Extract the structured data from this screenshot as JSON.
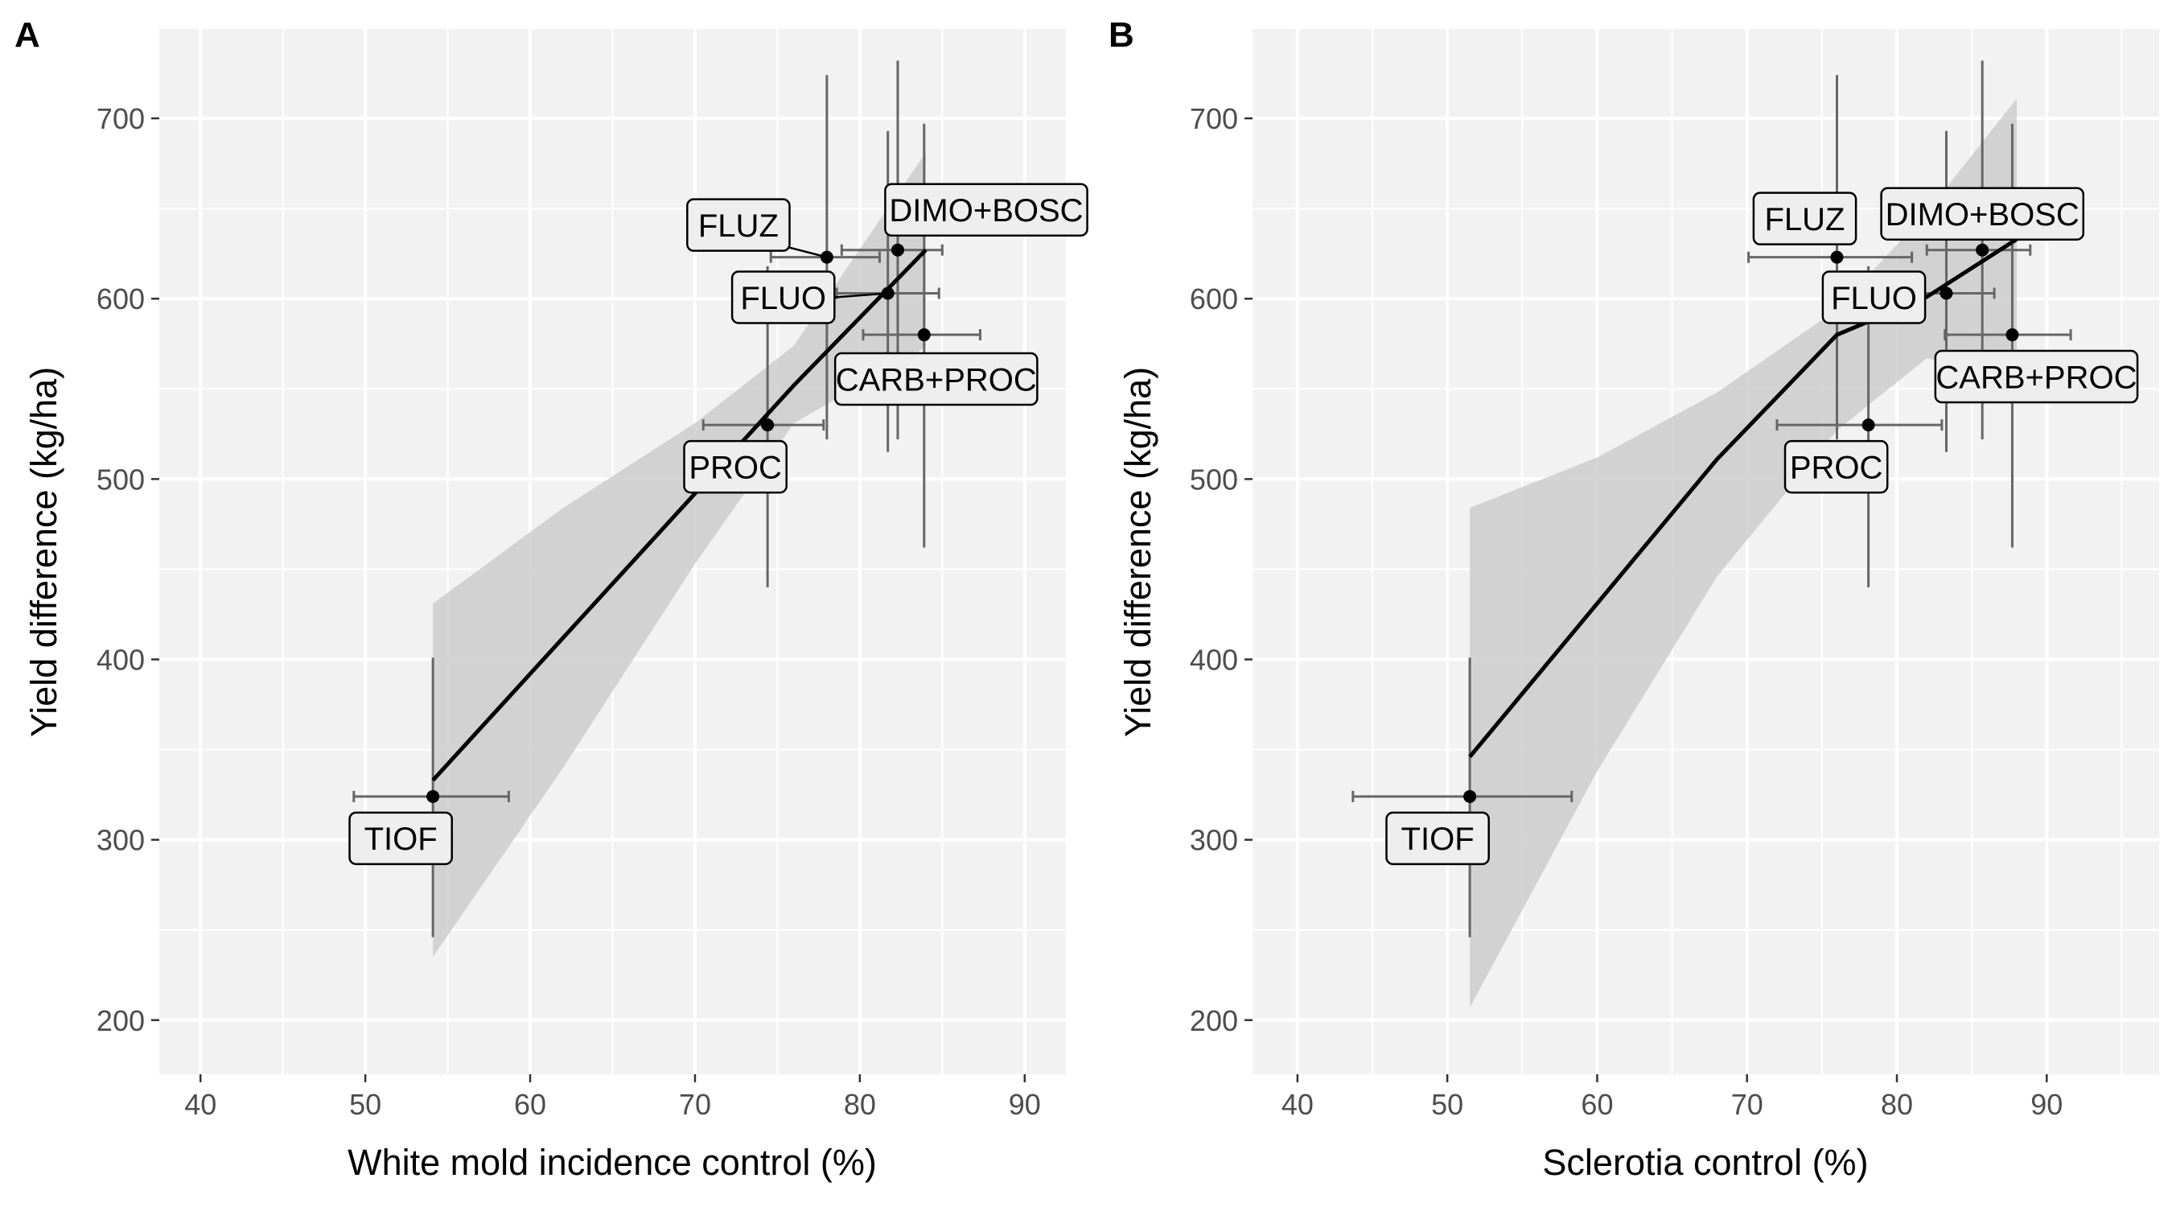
{
  "colors": {
    "panel_bg": "#f2f2f2",
    "grid": "#ffffff",
    "ribbon": "#cccccc",
    "fit_line": "#000000",
    "errorbar": "#666666",
    "point": "#000000",
    "label_bg": "#eeeeee",
    "label_border": "#000000",
    "tick_text": "#4d4d4d"
  },
  "chart_data": [
    {
      "type": "scatter",
      "panel": "A",
      "title": "",
      "xlabel": "White mold incidence control (%)",
      "ylabel": "Yield difference (kg/ha)",
      "xlim": [
        37.5,
        92.5
      ],
      "ylim": [
        170,
        750
      ],
      "xticks": [
        40,
        50,
        60,
        70,
        80,
        90
      ],
      "yticks": [
        200,
        300,
        400,
        500,
        600,
        700
      ],
      "grid": true,
      "legend": "none",
      "points": [
        {
          "label": "TIOF",
          "x": 54.1,
          "y": 324,
          "x_err": [
            49.3,
            58.7
          ],
          "y_err": [
            246,
            401
          ]
        },
        {
          "label": "PROC",
          "x": 74.4,
          "y": 530,
          "x_err": [
            70.5,
            77.8
          ],
          "y_err": [
            440,
            618
          ]
        },
        {
          "label": "FLUZ",
          "x": 78.0,
          "y": 623,
          "x_err": [
            74.6,
            81.2
          ],
          "y_err": [
            522,
            724
          ]
        },
        {
          "label": "FLUO",
          "x": 81.7,
          "y": 603,
          "x_err": [
            78.6,
            84.8
          ],
          "y_err": [
            515,
            693
          ]
        },
        {
          "label": "DIMO+BOSC",
          "x": 82.3,
          "y": 627,
          "x_err": [
            78.9,
            85.0
          ],
          "y_err": [
            522,
            732
          ]
        },
        {
          "label": "CARB+PROC",
          "x": 83.9,
          "y": 580,
          "x_err": [
            80.2,
            87.3
          ],
          "y_err": [
            462,
            697
          ]
        }
      ],
      "fit": {
        "x": [
          54.1,
          62.0,
          70.0,
          76.0,
          84.0
        ],
        "y": [
          333,
          412,
          492,
          552,
          627
        ],
        "lower": [
          235,
          340,
          453,
          531,
          573
        ],
        "upper": [
          431,
          484,
          531,
          574,
          681
        ]
      }
    },
    {
      "type": "scatter",
      "panel": "B",
      "title": "",
      "xlabel": "Sclerotia control (%)",
      "ylabel": "Yield difference (kg/ha)",
      "xlim": [
        37,
        97.5
      ],
      "ylim": [
        170,
        750
      ],
      "xticks": [
        40,
        50,
        60,
        70,
        80,
        90
      ],
      "yticks": [
        200,
        300,
        400,
        500,
        600,
        700
      ],
      "grid": true,
      "legend": "none",
      "points": [
        {
          "label": "TIOF",
          "x": 51.5,
          "y": 324,
          "x_err": [
            43.7,
            58.3
          ],
          "y_err": [
            246,
            401
          ]
        },
        {
          "label": "PROC",
          "x": 78.1,
          "y": 530,
          "x_err": [
            72.0,
            83.0
          ],
          "y_err": [
            440,
            618
          ]
        },
        {
          "label": "FLUZ",
          "x": 76.0,
          "y": 623,
          "x_err": [
            70.1,
            81.0
          ],
          "y_err": [
            522,
            724
          ]
        },
        {
          "label": "FLUO",
          "x": 83.3,
          "y": 603,
          "x_err": [
            80.5,
            86.5
          ],
          "y_err": [
            515,
            693
          ]
        },
        {
          "label": "DIMO+BOSC",
          "x": 85.7,
          "y": 627,
          "x_err": [
            82.0,
            88.9
          ],
          "y_err": [
            522,
            732
          ]
        },
        {
          "label": "CARB+PROC",
          "x": 87.7,
          "y": 580,
          "x_err": [
            83.2,
            91.6
          ],
          "y_err": [
            462,
            697
          ]
        }
      ],
      "fit": {
        "x": [
          51.5,
          60.0,
          68.0,
          76.0,
          82.0,
          88.0
        ],
        "y": [
          346,
          431,
          511,
          580,
          601,
          633
        ],
        "lower": [
          207,
          338,
          446,
          527,
          567,
          555
        ],
        "upper": [
          484,
          512,
          548,
          594,
          648,
          711
        ]
      }
    }
  ],
  "panels": [
    {
      "tag": "A"
    },
    {
      "tag": "B"
    }
  ]
}
